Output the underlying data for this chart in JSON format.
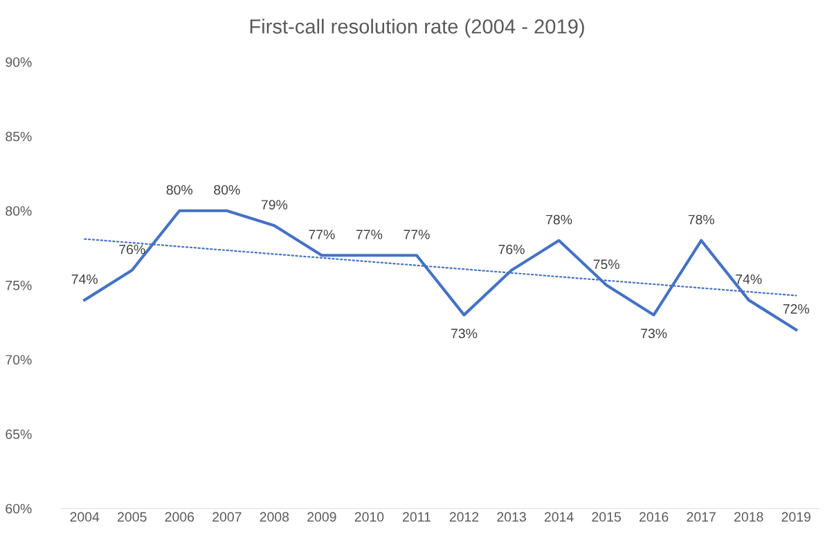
{
  "chart_data": {
    "type": "line",
    "title": "First-call resolution rate (2004 - 2019)",
    "x": [
      2004,
      2005,
      2006,
      2007,
      2008,
      2009,
      2010,
      2011,
      2012,
      2013,
      2014,
      2015,
      2016,
      2017,
      2018,
      2019
    ],
    "series": [
      {
        "color": "#4472c4",
        "values": [
          74,
          76,
          80,
          80,
          79,
          77,
          77,
          77,
          73,
          76,
          78,
          75,
          73,
          78,
          74,
          72
        ],
        "value_labels": [
          "74%",
          "76%",
          "80%",
          "80%",
          "79%",
          "77%",
          "77%",
          "77%",
          "73%",
          "76%",
          "78%",
          "75%",
          "73%",
          "78%",
          "74%",
          "72%"
        ]
      },
      {
        "type": "line",
        "color": "#4472c4",
        "line_style": "dotted",
        "x": [
          2004,
          2019
        ],
        "values": [
          78.1,
          74.3
        ]
      }
    ],
    "xlim": [
      2003.5,
      2019.5
    ],
    "xticks": [
      2004,
      2005,
      2006,
      2007,
      2008,
      2009,
      2010,
      2011,
      2012,
      2013,
      2014,
      2015,
      2016,
      2017,
      2018,
      2019
    ],
    "ylim": [
      60,
      90
    ],
    "yticks": [
      {
        "value": 60,
        "label": "60%"
      },
      {
        "value": 65,
        "label": "65%"
      },
      {
        "value": 70,
        "label": "70%"
      },
      {
        "value": 75,
        "label": "75%"
      },
      {
        "value": 80,
        "label": "80%"
      },
      {
        "value": 85,
        "label": "85%"
      },
      {
        "value": 90,
        "label": "90%"
      }
    ],
    "grid": false,
    "marker": "none",
    "line_style": "solid"
  }
}
